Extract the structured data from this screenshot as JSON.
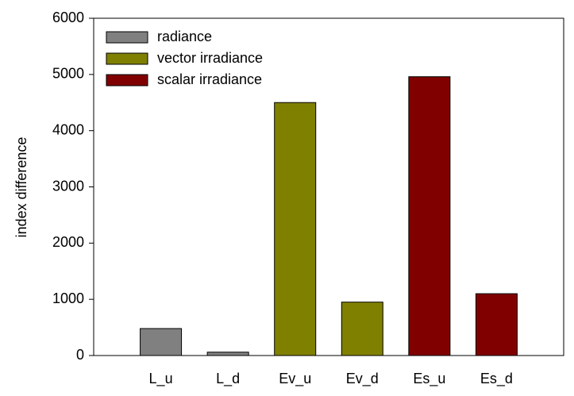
{
  "chart_data": {
    "type": "bar",
    "y_label": "index difference",
    "categories": [
      "L_u",
      "L_d",
      "Ev_u",
      "Ev_d",
      "Es_u",
      "Es_d"
    ],
    "series": [
      {
        "name": "radiance",
        "color": "#808080",
        "values": [
          480,
          60,
          null,
          null,
          null,
          null
        ]
      },
      {
        "name": "vector irradiance",
        "color": "#808000",
        "values": [
          null,
          null,
          4500,
          950,
          null,
          null
        ]
      },
      {
        "name": "scalar irradiance",
        "color": "#800000",
        "values": [
          null,
          null,
          null,
          null,
          4960,
          1100
        ]
      }
    ],
    "ylim": [
      0,
      6000
    ],
    "yticks": [
      0,
      1000,
      2000,
      3000,
      4000,
      5000,
      6000
    ],
    "grid": false,
    "legend": "upper-left"
  }
}
